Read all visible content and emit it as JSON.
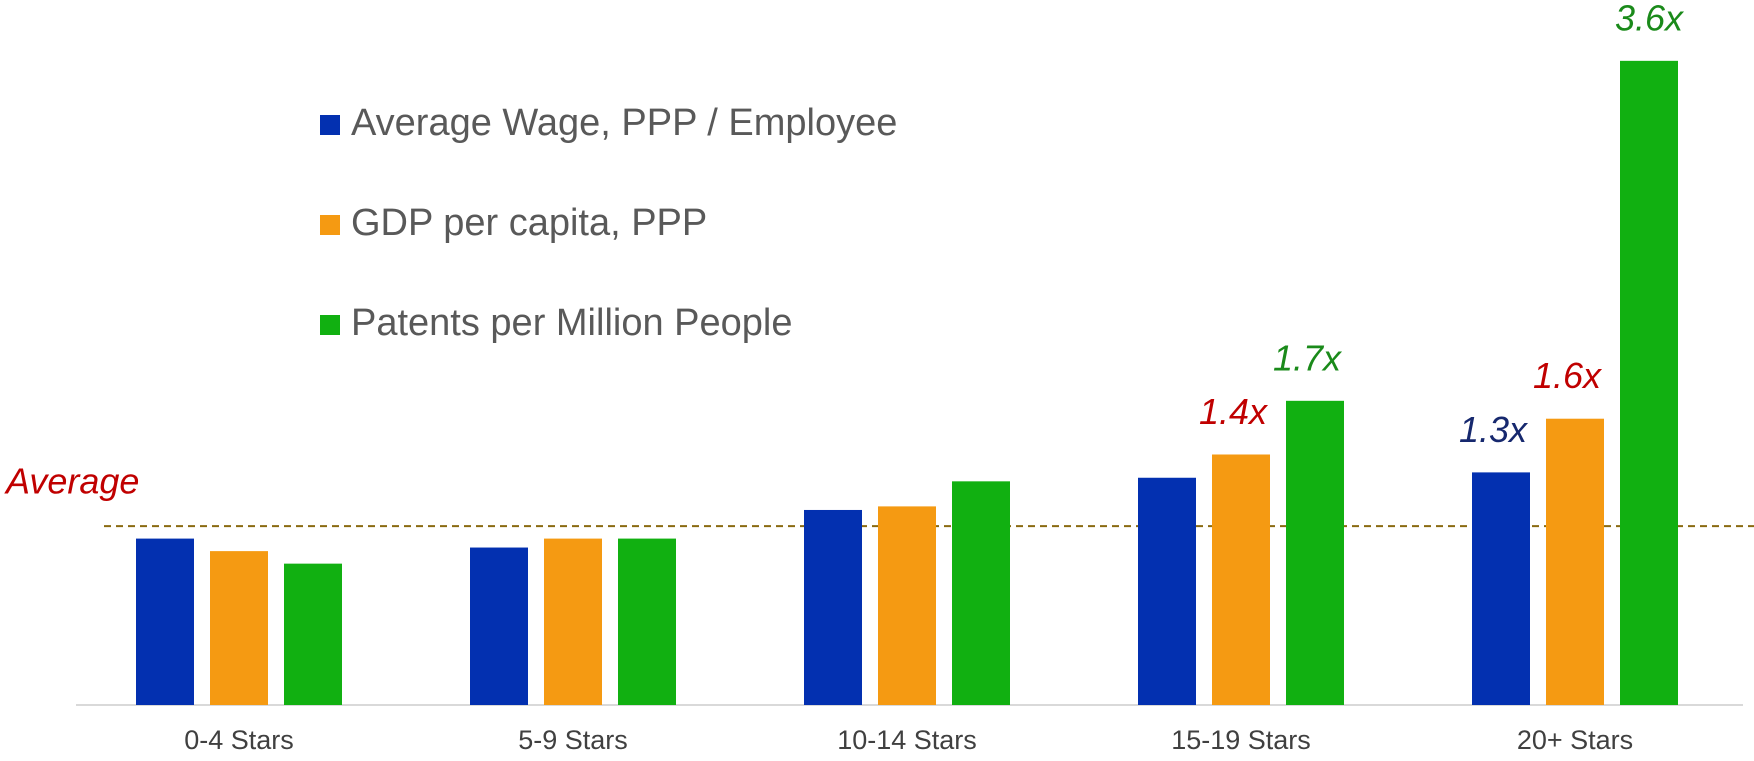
{
  "chart_data": {
    "type": "bar",
    "categories": [
      "0-4 Stars",
      "5-9 Stars",
      "10-14 Stars",
      "15-19 Stars",
      "20+ Stars"
    ],
    "series": [
      {
        "name": "Average Wage, PPP / Employee",
        "color": "#0330b0",
        "label_color": "#16286e",
        "values": [
          0.93,
          0.88,
          1.09,
          1.27,
          1.3
        ],
        "value_labels": [
          null,
          null,
          null,
          null,
          "1.3x"
        ]
      },
      {
        "name": "GDP per capita, PPP",
        "color": "#f59a12",
        "label_color": "#c00000",
        "values": [
          0.86,
          0.93,
          1.11,
          1.4,
          1.6
        ],
        "value_labels": [
          null,
          null,
          null,
          "1.4x",
          "1.6x"
        ]
      },
      {
        "name": "Patents per Million People",
        "color": "#11b011",
        "label_color": "#1a8a1a",
        "values": [
          0.79,
          0.93,
          1.25,
          1.7,
          3.6
        ],
        "value_labels": [
          null,
          null,
          null,
          "1.7x",
          "3.6x"
        ]
      }
    ],
    "ylim": [
      0,
      3.75
    ],
    "average": {
      "value": 1,
      "label": "Average",
      "color": "#c00000",
      "line_color": "#8a6a10"
    },
    "legend": "top-left"
  }
}
